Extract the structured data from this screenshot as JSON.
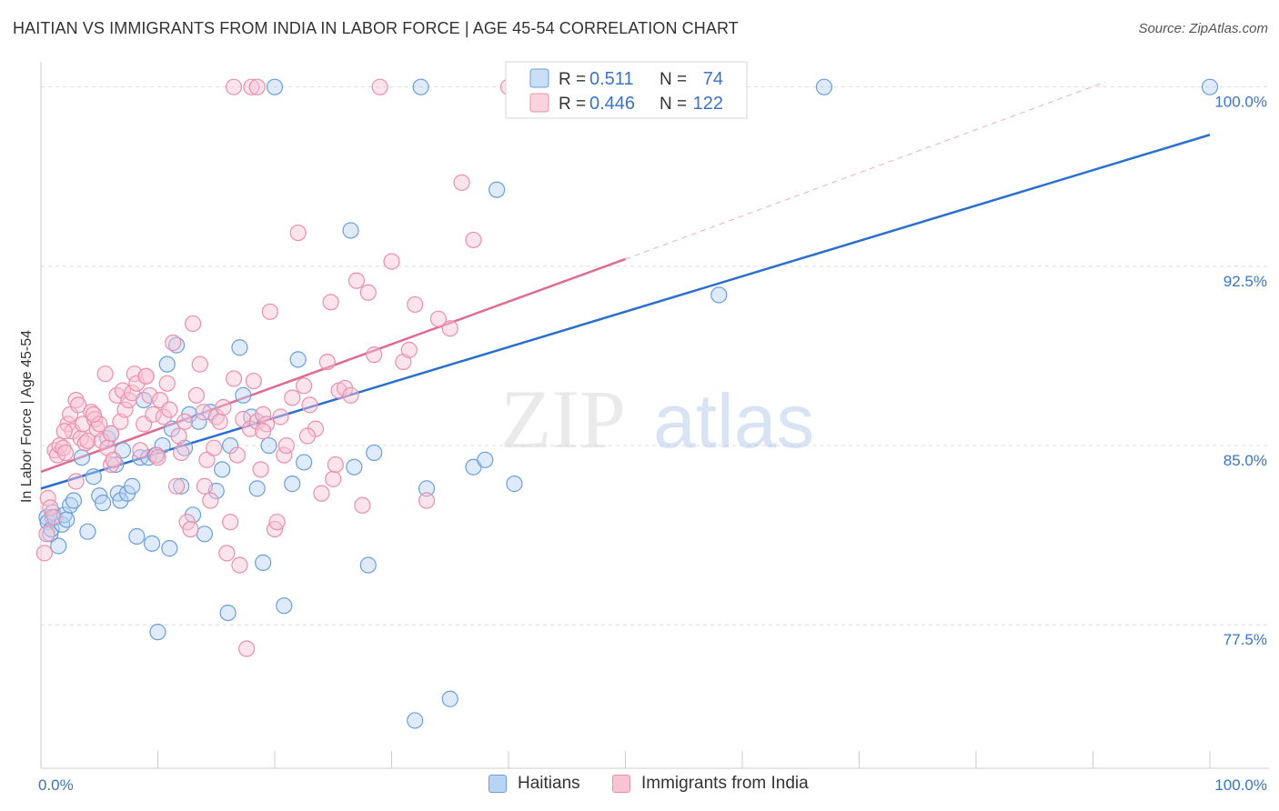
{
  "title": "HAITIAN VS IMMIGRANTS FROM INDIA IN LABOR FORCE | AGE 45-54 CORRELATION CHART",
  "source": "Source: ZipAtlas.com",
  "watermark": {
    "zip": "ZIP",
    "atlas": "atlas"
  },
  "chart_data": {
    "type": "scatter",
    "ylabel": "In Labor Force | Age 45-54",
    "xlim": [
      0,
      100
    ],
    "ylim": [
      71.5,
      100.9
    ],
    "x_tick_labels": [
      "0.0%",
      "100.0%"
    ],
    "y_ticks": [
      {
        "value": 100.0,
        "label": "100.0%"
      },
      {
        "value": 92.5,
        "label": "92.5%"
      },
      {
        "value": 85.0,
        "label": "85.0%"
      },
      {
        "value": 77.5,
        "label": "77.5%"
      }
    ],
    "legend_placement": "top-center",
    "stats_labels": {
      "r": "R =",
      "n": "N ="
    },
    "series": [
      {
        "name": "Haitians",
        "r": "0.511",
        "n": "74",
        "color": "#6a9fdc",
        "fill": "#b9d3f5",
        "line_color": "#2a6fcf",
        "trend": {
          "x": [
            0,
            100
          ],
          "y": [
            83.2,
            98.0
          ]
        },
        "points": [
          [
            0.5,
            82.0
          ],
          [
            0.6,
            81.8
          ],
          [
            0.8,
            81.3
          ],
          [
            0.9,
            81.5
          ],
          [
            1.0,
            82.2
          ],
          [
            1.2,
            82.0
          ],
          [
            1.5,
            80.8
          ],
          [
            1.8,
            81.7
          ],
          [
            2.0,
            82.1
          ],
          [
            2.2,
            81.9
          ],
          [
            2.5,
            82.5
          ],
          [
            2.8,
            82.7
          ],
          [
            3.5,
            84.5
          ],
          [
            4.0,
            81.4
          ],
          [
            4.5,
            83.7
          ],
          [
            5.0,
            82.9
          ],
          [
            5.3,
            82.6
          ],
          [
            5.7,
            85.3
          ],
          [
            6.0,
            85.5
          ],
          [
            6.4,
            84.2
          ],
          [
            6.6,
            83.0
          ],
          [
            6.8,
            82.7
          ],
          [
            7.0,
            84.8
          ],
          [
            7.4,
            83.0
          ],
          [
            7.8,
            83.3
          ],
          [
            8.2,
            81.2
          ],
          [
            8.5,
            84.5
          ],
          [
            8.8,
            86.9
          ],
          [
            9.2,
            84.5
          ],
          [
            9.5,
            80.9
          ],
          [
            9.8,
            84.6
          ],
          [
            10.0,
            77.2
          ],
          [
            10.4,
            85.0
          ],
          [
            10.8,
            88.4
          ],
          [
            11.0,
            80.7
          ],
          [
            11.2,
            85.7
          ],
          [
            11.6,
            89.2
          ],
          [
            12.0,
            83.3
          ],
          [
            12.3,
            84.9
          ],
          [
            12.7,
            86.3
          ],
          [
            13.0,
            82.1
          ],
          [
            13.5,
            86.0
          ],
          [
            14.0,
            81.3
          ],
          [
            14.5,
            86.4
          ],
          [
            15.0,
            83.1
          ],
          [
            15.5,
            84.0
          ],
          [
            16.0,
            78.0
          ],
          [
            16.2,
            85.0
          ],
          [
            17.0,
            89.1
          ],
          [
            17.3,
            87.1
          ],
          [
            18.0,
            86.2
          ],
          [
            18.5,
            83.2
          ],
          [
            19.0,
            80.1
          ],
          [
            19.5,
            85.0
          ],
          [
            20.0,
            100.0
          ],
          [
            20.8,
            78.3
          ],
          [
            21.5,
            83.4
          ],
          [
            22.0,
            88.6
          ],
          [
            22.5,
            84.3
          ],
          [
            26.5,
            94.0
          ],
          [
            26.8,
            84.1
          ],
          [
            28.0,
            80.0
          ],
          [
            28.5,
            84.7
          ],
          [
            32.0,
            73.5
          ],
          [
            32.5,
            100.0
          ],
          [
            33.0,
            83.2
          ],
          [
            35.0,
            74.4
          ],
          [
            37.0,
            84.1
          ],
          [
            38.0,
            84.4
          ],
          [
            39.0,
            95.7
          ],
          [
            40.5,
            83.4
          ],
          [
            58.0,
            91.3
          ],
          [
            67.0,
            100.0
          ],
          [
            100.0,
            100.0
          ]
        ]
      },
      {
        "name": "Immigrants from India",
        "r": "0.446",
        "n": "122",
        "color": "#ea8fab",
        "fill": "#f8c4d4",
        "line_color": "#e06a93",
        "trend": {
          "x": [
            0,
            50
          ],
          "y": [
            83.9,
            92.8
          ]
        },
        "trend_dashed": {
          "x": [
            50,
            91
          ],
          "y": [
            92.8,
            100.2
          ]
        },
        "points": [
          [
            0.3,
            80.5
          ],
          [
            0.5,
            81.3
          ],
          [
            0.6,
            82.8
          ],
          [
            0.8,
            82.4
          ],
          [
            1.0,
            82.0
          ],
          [
            1.2,
            84.8
          ],
          [
            1.4,
            84.6
          ],
          [
            1.6,
            85.0
          ],
          [
            1.9,
            84.9
          ],
          [
            2.1,
            84.7
          ],
          [
            2.3,
            85.9
          ],
          [
            2.5,
            86.3
          ],
          [
            2.7,
            85.6
          ],
          [
            3.0,
            86.9
          ],
          [
            3.2,
            86.7
          ],
          [
            3.4,
            85.3
          ],
          [
            3.6,
            85.9
          ],
          [
            3.8,
            85.1
          ],
          [
            4.0,
            85.2
          ],
          [
            4.3,
            86.4
          ],
          [
            4.6,
            86.1
          ],
          [
            4.8,
            85.7
          ],
          [
            5.0,
            85.9
          ],
          [
            5.2,
            85.2
          ],
          [
            5.5,
            88.0
          ],
          [
            5.7,
            84.9
          ],
          [
            6.0,
            84.2
          ],
          [
            6.2,
            84.4
          ],
          [
            6.5,
            87.1
          ],
          [
            6.8,
            86.0
          ],
          [
            7.0,
            87.3
          ],
          [
            7.2,
            86.5
          ],
          [
            7.5,
            86.9
          ],
          [
            7.8,
            87.2
          ],
          [
            8.0,
            88.0
          ],
          [
            8.2,
            87.6
          ],
          [
            8.5,
            84.8
          ],
          [
            8.8,
            85.9
          ],
          [
            9.0,
            87.9
          ],
          [
            9.3,
            87.1
          ],
          [
            9.6,
            86.3
          ],
          [
            9.9,
            84.6
          ],
          [
            10.2,
            86.9
          ],
          [
            10.5,
            86.2
          ],
          [
            10.8,
            87.6
          ],
          [
            11.0,
            86.5
          ],
          [
            11.3,
            89.3
          ],
          [
            11.6,
            83.3
          ],
          [
            12.0,
            84.7
          ],
          [
            12.3,
            86.0
          ],
          [
            12.5,
            81.8
          ],
          [
            12.8,
            81.5
          ],
          [
            13.0,
            90.1
          ],
          [
            13.3,
            87.1
          ],
          [
            13.6,
            88.4
          ],
          [
            13.9,
            86.4
          ],
          [
            14.2,
            84.4
          ],
          [
            14.5,
            82.7
          ],
          [
            14.8,
            84.9
          ],
          [
            15.0,
            86.2
          ],
          [
            15.3,
            86.0
          ],
          [
            15.6,
            86.6
          ],
          [
            15.9,
            80.5
          ],
          [
            16.2,
            81.8
          ],
          [
            16.5,
            87.8
          ],
          [
            16.8,
            84.6
          ],
          [
            17.0,
            80.0
          ],
          [
            17.3,
            86.1
          ],
          [
            17.6,
            76.5
          ],
          [
            17.9,
            85.7
          ],
          [
            18.2,
            87.7
          ],
          [
            18.5,
            86.0
          ],
          [
            18.8,
            84.0
          ],
          [
            19.0,
            86.3
          ],
          [
            19.3,
            85.9
          ],
          [
            19.6,
            90.6
          ],
          [
            20.0,
            81.5
          ],
          [
            20.2,
            81.8
          ],
          [
            20.5,
            86.2
          ],
          [
            20.8,
            84.6
          ],
          [
            21.0,
            85.0
          ],
          [
            21.5,
            87.0
          ],
          [
            22.0,
            93.9
          ],
          [
            22.5,
            87.5
          ],
          [
            23.0,
            86.7
          ],
          [
            23.5,
            85.7
          ],
          [
            24.0,
            83.0
          ],
          [
            24.5,
            88.5
          ],
          [
            24.8,
            91.0
          ],
          [
            25.0,
            83.6
          ],
          [
            25.5,
            87.3
          ],
          [
            26.0,
            87.4
          ],
          [
            26.5,
            87.1
          ],
          [
            27.0,
            91.9
          ],
          [
            27.5,
            82.5
          ],
          [
            28.0,
            91.4
          ],
          [
            28.5,
            88.8
          ],
          [
            29.0,
            100.0
          ],
          [
            30.0,
            92.7
          ],
          [
            31.0,
            88.5
          ],
          [
            31.5,
            89.0
          ],
          [
            32.0,
            90.9
          ],
          [
            33.0,
            82.7
          ],
          [
            34.0,
            90.3
          ],
          [
            35.0,
            89.9
          ],
          [
            36.0,
            96.0
          ],
          [
            37.0,
            93.6
          ],
          [
            40.0,
            100.0
          ],
          [
            16.5,
            100.0
          ],
          [
            18.0,
            100.0
          ],
          [
            18.5,
            100.0
          ],
          [
            19.0,
            85.6
          ],
          [
            10.0,
            84.5
          ],
          [
            9.0,
            87.9
          ],
          [
            6.0,
            85.5
          ],
          [
            2.0,
            85.6
          ],
          [
            4.5,
            86.3
          ],
          [
            3.0,
            83.5
          ],
          [
            11.8,
            85.4
          ],
          [
            14.0,
            83.3
          ],
          [
            22.8,
            85.4
          ],
          [
            25.2,
            84.2
          ]
        ]
      }
    ]
  }
}
